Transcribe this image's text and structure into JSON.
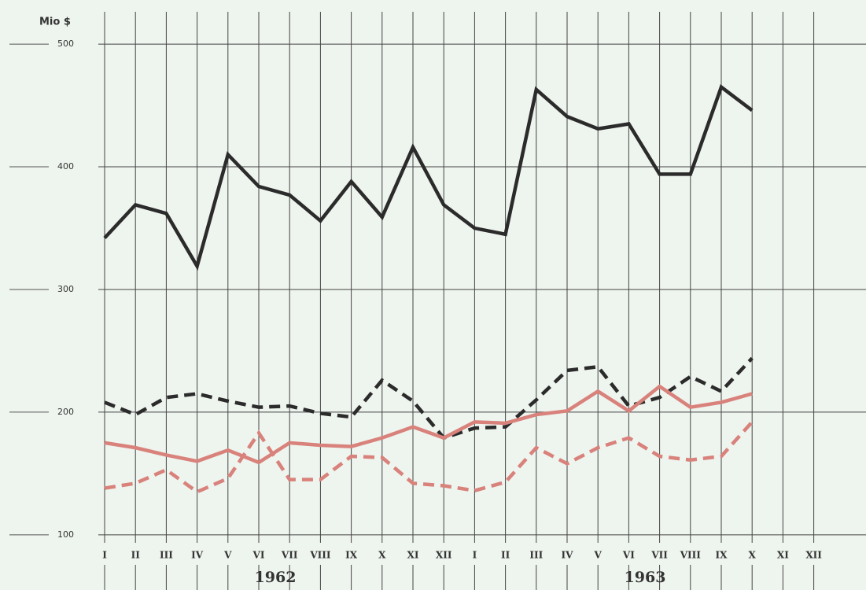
{
  "chart_data": {
    "type": "line",
    "y_label": "Mio $",
    "categories": [
      "I",
      "II",
      "III",
      "IV",
      "V",
      "VI",
      "VII",
      "VIII",
      "IX",
      "X",
      "XI",
      "XII",
      "I",
      "II",
      "III",
      "IV",
      "V",
      "VI",
      "VII",
      "VIII",
      "IX",
      "X",
      "XI",
      "XII"
    ],
    "annotations": [
      "1962",
      "1963"
    ],
    "ylim": [
      55,
      536
    ],
    "yticks": [
      100,
      200,
      300,
      400,
      500
    ],
    "grid": true,
    "series": [
      {
        "color": "#2b2b2b",
        "dashed": false,
        "values": [
          342,
          369,
          362,
          319,
          410,
          384,
          377,
          356,
          388,
          359,
          416,
          369,
          350,
          345,
          463,
          441,
          431,
          435,
          394,
          394,
          465,
          446,
          null,
          null
        ]
      },
      {
        "color": "#2b2b2b",
        "dashed": true,
        "values": [
          208,
          198,
          212,
          215,
          209,
          204,
          205,
          199,
          196,
          226,
          209,
          179,
          187,
          188,
          210,
          234,
          237,
          205,
          212,
          229,
          217,
          244,
          null,
          null
        ]
      },
      {
        "color": "#d9817b",
        "dashed": false,
        "values": [
          175,
          171,
          165,
          160,
          169,
          159,
          175,
          173,
          172,
          179,
          188,
          179,
          192,
          191,
          198,
          201,
          217,
          201,
          221,
          204,
          208,
          215,
          null,
          null
        ]
      },
      {
        "color": "#d9817b",
        "dashed": true,
        "values": [
          138,
          142,
          153,
          135,
          146,
          183,
          145,
          145,
          164,
          163,
          142,
          140,
          136,
          143,
          171,
          158,
          171,
          179,
          164,
          161,
          164,
          192,
          null,
          null
        ]
      }
    ]
  }
}
